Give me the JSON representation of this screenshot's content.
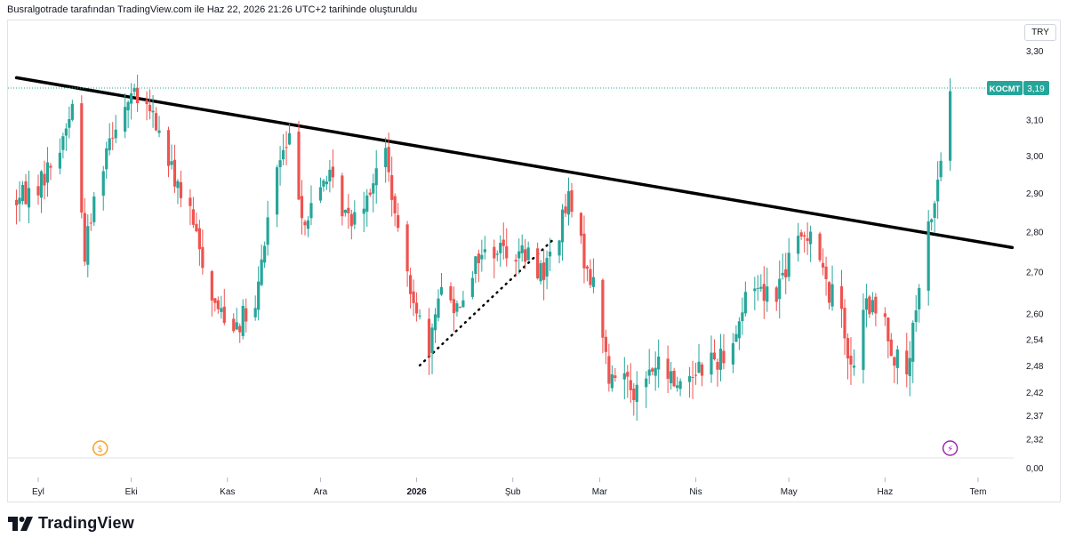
{
  "header": "Busralgotrade tarafından TradingView.com ile Haz 22, 2026 21:26 UTC+2 tarihinde oluşturuldu",
  "brand": "TradingView",
  "currency": "TRY",
  "price_tag": {
    "symbol": "KOCMT",
    "value": "3,19"
  },
  "colors": {
    "up": "#26a69a",
    "down": "#ef5350",
    "trendline": "#000000",
    "tag": "#26a69a"
  },
  "chart_data": {
    "type": "candlestick",
    "symbol": "KOCMT",
    "y_scale": "log",
    "y_ticks": [
      "3,30",
      "3,19",
      "3,10",
      "3,00",
      "2,90",
      "2,80",
      "2,70",
      "2,60",
      "2,54",
      "2,48",
      "2,42",
      "2,37",
      "2,32",
      "0,00"
    ],
    "x_ticks": [
      {
        "label": "Eyl",
        "bold": false
      },
      {
        "label": "Eki",
        "bold": false
      },
      {
        "label": "Kas",
        "bold": false
      },
      {
        "label": "Ara",
        "bold": false
      },
      {
        "label": "2026",
        "bold": true
      },
      {
        "label": "Şub",
        "bold": false
      },
      {
        "label": "Mar",
        "bold": false
      },
      {
        "label": "Nis",
        "bold": false
      },
      {
        "label": "May",
        "bold": false
      },
      {
        "label": "Haz",
        "bold": false
      },
      {
        "label": "Tem",
        "bold": false
      }
    ],
    "last_price": 3.19,
    "trendline": {
      "from": {
        "date": "2025-08-25",
        "price": 3.22
      },
      "to": {
        "date": "2026-07-12",
        "price": 2.76
      }
    },
    "dotted_line": {
      "from": {
        "date": "2026-01-02",
        "price": 2.48
      },
      "to": {
        "date": "2026-02-14",
        "price": 2.78
      }
    },
    "markers": [
      {
        "type": "dividend",
        "label": "$",
        "date": "2025-09-21"
      },
      {
        "type": "event",
        "label": "⚡",
        "date": "2026-06-22"
      }
    ],
    "anchors": [
      [
        "2025-08-25",
        2.88
      ],
      [
        "2025-09-01",
        2.92
      ],
      [
        "2025-09-08",
        3.02
      ],
      [
        "2025-09-12",
        3.14
      ],
      [
        "2025-09-16",
        2.75
      ],
      [
        "2025-09-19",
        2.88
      ],
      [
        "2025-09-24",
        3.06
      ],
      [
        "2025-10-01",
        3.17
      ],
      [
        "2025-10-08",
        3.11
      ],
      [
        "2025-10-14",
        2.96
      ],
      [
        "2025-10-20",
        2.84
      ],
      [
        "2025-10-28",
        2.62
      ],
      [
        "2025-11-03",
        2.58
      ],
      [
        "2025-11-10",
        2.6
      ],
      [
        "2025-11-16",
        2.95
      ],
      [
        "2025-11-21",
        3.04
      ],
      [
        "2025-11-26",
        2.82
      ],
      [
        "2025-12-03",
        2.95
      ],
      [
        "2025-12-10",
        2.83
      ],
      [
        "2025-12-16",
        2.9
      ],
      [
        "2025-12-22",
        3.01
      ],
      [
        "2025-12-26",
        2.78
      ],
      [
        "2026-01-01",
        2.62
      ],
      [
        "2026-01-05",
        2.48
      ],
      [
        "2026-01-08",
        2.66
      ],
      [
        "2026-01-14",
        2.62
      ],
      [
        "2026-01-21",
        2.74
      ],
      [
        "2026-01-28",
        2.76
      ],
      [
        "2026-02-05",
        2.74
      ],
      [
        "2026-02-11",
        2.7
      ],
      [
        "2026-02-15",
        2.78
      ],
      [
        "2026-02-19",
        2.88
      ],
      [
        "2026-02-23",
        2.76
      ],
      [
        "2026-03-01",
        2.62
      ],
      [
        "2026-03-04",
        2.44
      ],
      [
        "2026-03-09",
        2.47
      ],
      [
        "2026-03-13",
        2.42
      ],
      [
        "2026-03-19",
        2.48
      ],
      [
        "2026-03-26",
        2.44
      ],
      [
        "2026-04-02",
        2.48
      ],
      [
        "2026-04-09",
        2.5
      ],
      [
        "2026-04-14",
        2.56
      ],
      [
        "2026-04-19",
        2.68
      ],
      [
        "2026-04-26",
        2.64
      ],
      [
        "2026-05-03",
        2.76
      ],
      [
        "2026-05-09",
        2.82
      ],
      [
        "2026-05-13",
        2.66
      ],
      [
        "2026-05-18",
        2.62
      ],
      [
        "2026-05-21",
        2.46
      ],
      [
        "2026-05-26",
        2.62
      ],
      [
        "2026-06-01",
        2.58
      ],
      [
        "2026-06-04",
        2.5
      ],
      [
        "2026-06-08",
        2.46
      ],
      [
        "2026-06-12",
        2.64
      ],
      [
        "2026-06-14",
        2.78
      ],
      [
        "2026-06-17",
        2.88
      ],
      [
        "2026-06-20",
        3.04
      ],
      [
        "2026-06-22",
        3.19
      ]
    ]
  }
}
